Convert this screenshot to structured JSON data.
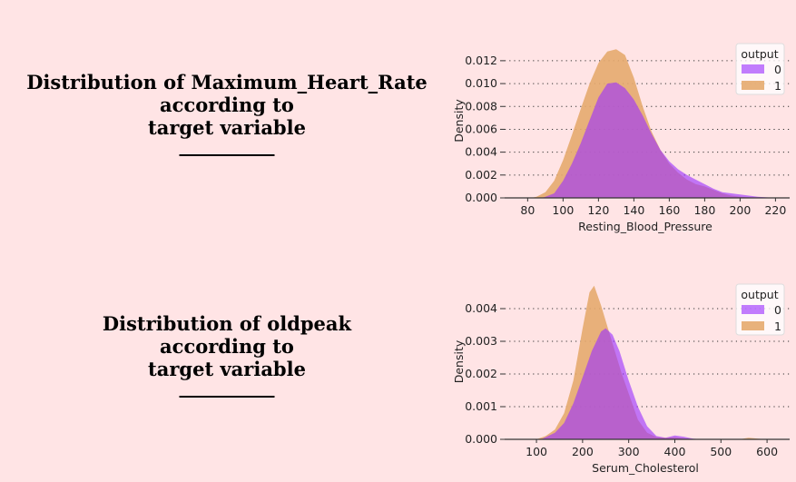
{
  "titles": [
    {
      "lines": [
        "Distribution of Maximum_Heart_Rate",
        "according to",
        "target variable",
        "__________"
      ]
    },
    {
      "lines": [
        "Distribution of oldpeak",
        "according to",
        "target variable",
        "__________"
      ]
    }
  ],
  "colors": {
    "background": "#ffe4e5",
    "class_0": "#9b30ff",
    "class_1": "#e6aa6e"
  },
  "chart_data": [
    {
      "type": "area",
      "xlabel": "Resting_Blood_Pressure",
      "ylabel": "Density",
      "xlim": [
        67,
        228
      ],
      "ylim": [
        0,
        0.0135
      ],
      "xticks": [
        80,
        100,
        120,
        140,
        160,
        180,
        200,
        220
      ],
      "yticks": [
        "0.000",
        "0.002",
        "0.004",
        "0.006",
        "0.008",
        "0.010",
        "0.012"
      ],
      "grid": "horizontal dotted",
      "legend": {
        "title": "output",
        "placement": "top-right",
        "entries": [
          "0",
          "1"
        ]
      },
      "series": [
        {
          "name": "1",
          "x": [
            82,
            85,
            90,
            95,
            100,
            105,
            110,
            115,
            120,
            125,
            130,
            135,
            140,
            145,
            150,
            155,
            160,
            165,
            170,
            175,
            180,
            185,
            190,
            195,
            200,
            210
          ],
          "y": [
            0,
            0.0001,
            0.0005,
            0.0015,
            0.0033,
            0.0055,
            0.0078,
            0.01,
            0.0118,
            0.0128,
            0.013,
            0.0125,
            0.0105,
            0.008,
            0.0058,
            0.0042,
            0.003,
            0.0022,
            0.0016,
            0.0012,
            0.001,
            0.0007,
            0.0004,
            0.0002,
            0.0001,
            0
          ]
        },
        {
          "name": "0",
          "x": [
            88,
            90,
            95,
            100,
            105,
            110,
            115,
            120,
            125,
            130,
            135,
            140,
            145,
            150,
            155,
            160,
            165,
            170,
            175,
            180,
            185,
            190,
            195,
            200,
            210,
            220
          ],
          "y": [
            0,
            0.0001,
            0.0004,
            0.0015,
            0.003,
            0.0048,
            0.0068,
            0.0088,
            0.01,
            0.0101,
            0.0096,
            0.0086,
            0.0072,
            0.0056,
            0.0042,
            0.0032,
            0.0025,
            0.002,
            0.0016,
            0.0012,
            0.0008,
            0.0005,
            0.0004,
            0.0003,
            0.0001,
            0
          ]
        }
      ]
    },
    {
      "type": "area",
      "xlabel": "Serum_Cholesterol",
      "ylabel": "Density",
      "xlim": [
        31,
        649
      ],
      "ylim": [
        0,
        0.00475
      ],
      "xticks": [
        100,
        200,
        300,
        400,
        500,
        600
      ],
      "yticks": [
        "0.000",
        "0.001",
        "0.002",
        "0.003",
        "0.004"
      ],
      "grid": "horizontal dotted",
      "legend": {
        "title": "output",
        "placement": "top-right",
        "entries": [
          "0",
          "1"
        ]
      },
      "series": [
        {
          "name": "1",
          "x": [
            100,
            120,
            140,
            160,
            180,
            200,
            215,
            225,
            240,
            255,
            270,
            285,
            300,
            320,
            340,
            360,
            380,
            400,
            420,
            450,
            540,
            560,
            580,
            600
          ],
          "y": [
            0,
            0.0001,
            0.0003,
            0.0008,
            0.0018,
            0.0034,
            0.0045,
            0.0047,
            0.0041,
            0.0034,
            0.0027,
            0.002,
            0.0014,
            0.0006,
            0.0002,
            7e-05,
            5e-05,
            6e-05,
            3e-05,
            0,
            0,
            5e-05,
            2e-05,
            0
          ]
        },
        {
          "name": "0",
          "x": [
            110,
            140,
            160,
            180,
            200,
            220,
            240,
            250,
            265,
            280,
            300,
            320,
            340,
            360,
            380,
            400,
            420,
            440,
            460
          ],
          "y": [
            0,
            0.0002,
            0.0005,
            0.0011,
            0.0019,
            0.0027,
            0.0033,
            0.0034,
            0.0032,
            0.0027,
            0.0018,
            0.001,
            0.0004,
            0.0001,
            5e-05,
            0.00012,
            8e-05,
            2e-05,
            0
          ]
        }
      ]
    }
  ]
}
